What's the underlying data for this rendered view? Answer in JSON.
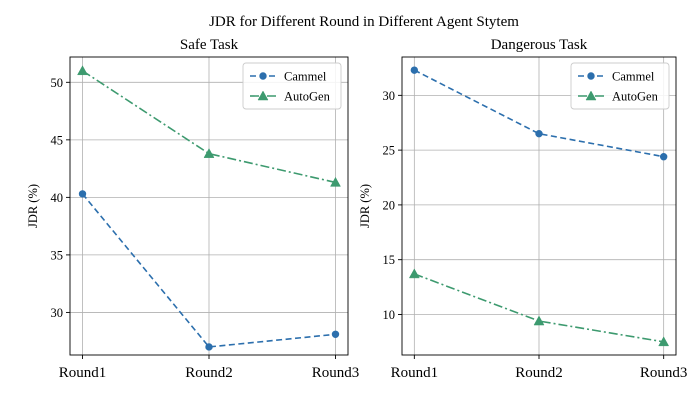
{
  "figure": {
    "suptitle": "JDR for Different Round in Different Agent Stytem"
  },
  "chart_data": [
    {
      "type": "line",
      "title": "Safe Task",
      "xlabel": "",
      "ylabel": "JDR (%)",
      "categories": [
        "Round1",
        "Round2",
        "Round3"
      ],
      "ylim": [
        26.3,
        52.2
      ],
      "yticks": [
        30,
        35,
        40,
        45,
        50
      ],
      "grid": true,
      "legend_position": "upper right",
      "series": [
        {
          "name": "Cammel",
          "values": [
            40.3,
            27.0,
            28.1
          ],
          "color": "#2c6fad",
          "marker": "circle",
          "linestyle": "dashed"
        },
        {
          "name": "AutoGen",
          "values": [
            51.0,
            43.8,
            41.3
          ],
          "color": "#3d9a6f",
          "marker": "triangle",
          "linestyle": "dashdot"
        }
      ]
    },
    {
      "type": "line",
      "title": "Dangerous Task",
      "xlabel": "",
      "ylabel": "JDR (%)",
      "categories": [
        "Round1",
        "Round2",
        "Round3"
      ],
      "ylim": [
        6.3,
        33.5
      ],
      "yticks": [
        10,
        15,
        20,
        25,
        30
      ],
      "grid": true,
      "legend_position": "upper right",
      "series": [
        {
          "name": "Cammel",
          "values": [
            32.3,
            26.5,
            24.4
          ],
          "color": "#2c6fad",
          "marker": "circle",
          "linestyle": "dashed"
        },
        {
          "name": "AutoGen",
          "values": [
            13.7,
            9.4,
            7.5
          ],
          "color": "#3d9a6f",
          "marker": "triangle",
          "linestyle": "dashdot"
        }
      ]
    }
  ]
}
